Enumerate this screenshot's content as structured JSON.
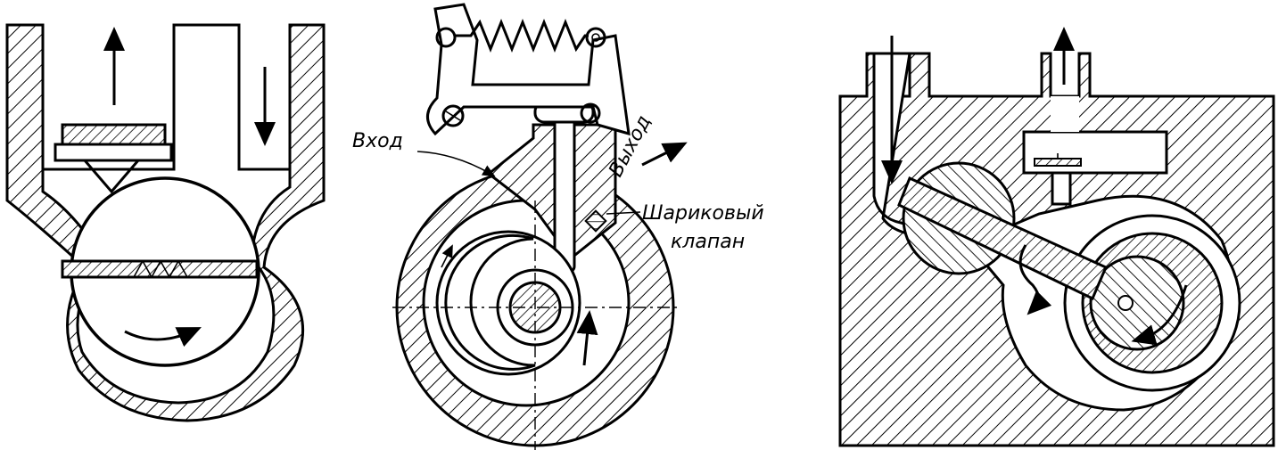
{
  "diagrams": [
    {
      "id": "pump-1"
    },
    {
      "id": "pump-2",
      "labels": {
        "inlet": "Вход",
        "outlet": "Выход",
        "ball_valve_line1": "Шариковый",
        "ball_valve_line2": "клапан"
      }
    },
    {
      "id": "pump-3"
    }
  ],
  "colors": {
    "ink": "#000000",
    "paper": "#ffffff"
  }
}
